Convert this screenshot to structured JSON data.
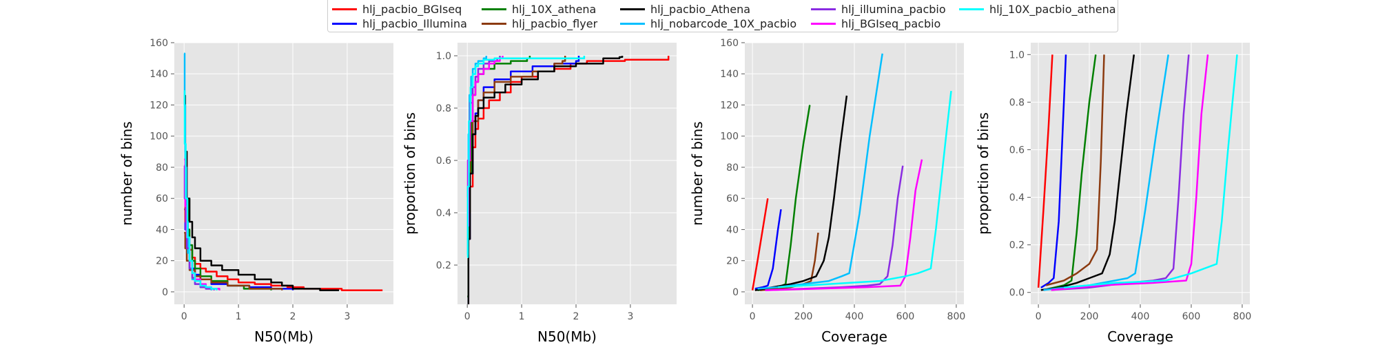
{
  "legend": {
    "entries": [
      {
        "name": "hlj_pacbio_BGIseq",
        "color": "#ff0000"
      },
      {
        "name": "hlj_pacbio_Illumina",
        "color": "#0000ff"
      },
      {
        "name": "hlj_10X_athena",
        "color": "#007f00"
      },
      {
        "name": "hlj_pacbio_flyer",
        "color": "#8b3a0f"
      },
      {
        "name": "hlj_pacbio_Athena",
        "color": "#000000"
      },
      {
        "name": "hlj_nobarcode_10X_pacbio",
        "color": "#00bfff"
      },
      {
        "name": "hlj_illumina_pacbio",
        "color": "#8a2be2"
      },
      {
        "name": "hlj_BGIseq_pacbio",
        "color": "#ff00ff"
      },
      {
        "name": "hlj_10X_pacbio_athena",
        "color": "#00ffff"
      }
    ]
  },
  "chart_data": [
    {
      "type": "line",
      "xlabel": "N50(Mb)",
      "ylabel": "number  of bins",
      "xlim": [
        -0.18,
        3.85
      ],
      "ylim": [
        -8,
        160
      ],
      "xticks": [
        0,
        1,
        2,
        3
      ],
      "yticks": [
        0,
        20,
        40,
        60,
        80,
        100,
        120,
        140,
        160
      ],
      "grid": true,
      "series": [
        {
          "name": "hlj_pacbio_BGIseq",
          "x": [
            0.0,
            0.02,
            0.05,
            0.1,
            0.15,
            0.2,
            0.3,
            0.4,
            0.6,
            0.8,
            1.0,
            1.3,
            1.6,
            1.9,
            2.2,
            2.9,
            3.65
          ],
          "y": [
            60,
            45,
            35,
            27,
            22,
            18,
            15,
            13,
            10,
            8,
            6,
            5,
            4,
            3,
            2,
            1,
            1
          ]
        },
        {
          "name": "hlj_pacbio_Illumina",
          "x": [
            0.0,
            0.02,
            0.05,
            0.1,
            0.15,
            0.2,
            0.3,
            0.5,
            0.8,
            1.2,
            1.6,
            2.0
          ],
          "y": [
            53,
            40,
            30,
            20,
            15,
            11,
            8,
            5,
            4,
            3,
            2,
            1
          ]
        },
        {
          "name": "hlj_10X_athena",
          "x": [
            0.0,
            0.02,
            0.04,
            0.07,
            0.1,
            0.15,
            0.2,
            0.3,
            0.5,
            0.8,
            1.1,
            1.6
          ],
          "y": [
            120,
            90,
            60,
            40,
            30,
            20,
            15,
            10,
            7,
            4,
            2,
            1
          ]
        },
        {
          "name": "hlj_pacbio_flyer",
          "x": [
            0.0,
            0.02,
            0.05,
            0.1,
            0.2,
            0.3,
            0.5,
            0.8,
            1.2,
            1.8
          ],
          "y": [
            38,
            28,
            20,
            14,
            10,
            8,
            6,
            4,
            2,
            1
          ]
        },
        {
          "name": "hlj_pacbio_Athena",
          "x": [
            0.0,
            0.02,
            0.05,
            0.1,
            0.15,
            0.2,
            0.3,
            0.5,
            0.7,
            1.0,
            1.3,
            1.6,
            1.8,
            2.0,
            2.5,
            2.85
          ],
          "y": [
            126,
            90,
            60,
            45,
            35,
            28,
            20,
            17,
            14,
            11,
            8,
            6,
            4,
            2,
            1,
            1
          ]
        },
        {
          "name": "hlj_nobarcode_10X_pacbio",
          "x": [
            0.0,
            0.01,
            0.02,
            0.04,
            0.07,
            0.1,
            0.15,
            0.2,
            0.3,
            0.4,
            0.5
          ],
          "y": [
            153,
            120,
            80,
            45,
            25,
            15,
            8,
            5,
            3,
            2,
            1
          ]
        },
        {
          "name": "hlj_illumina_pacbio",
          "x": [
            0.0,
            0.01,
            0.03,
            0.05,
            0.1,
            0.15,
            0.2,
            0.3,
            0.4,
            0.55
          ],
          "y": [
            81,
            60,
            40,
            28,
            15,
            9,
            5,
            3,
            2,
            1
          ]
        },
        {
          "name": "hlj_BGIseq_pacbio",
          "x": [
            0.0,
            0.02,
            0.05,
            0.1,
            0.15,
            0.2,
            0.3,
            0.4,
            0.5,
            0.65
          ],
          "y": [
            85,
            55,
            35,
            20,
            12,
            8,
            5,
            3,
            2,
            1
          ]
        },
        {
          "name": "hlj_10X_pacbio_athena",
          "x": [
            0.0,
            0.01,
            0.03,
            0.06,
            0.1,
            0.15,
            0.2,
            0.3,
            0.4,
            0.5,
            0.6
          ],
          "y": [
            129,
            95,
            60,
            35,
            20,
            12,
            7,
            4,
            3,
            2,
            1
          ]
        }
      ]
    },
    {
      "type": "line",
      "xlabel": "N50(Mb)",
      "ylabel": "proportion of bins",
      "xlim": [
        -0.18,
        3.85
      ],
      "ylim": [
        0.05,
        1.05
      ],
      "xticks": [
        0,
        1,
        2,
        3
      ],
      "yticks": [
        0.2,
        0.4,
        0.6,
        0.8,
        1.0
      ],
      "grid": true,
      "series": [
        {
          "name": "hlj_pacbio_BGIseq",
          "x": [
            0.0,
            0.02,
            0.05,
            0.1,
            0.15,
            0.2,
            0.3,
            0.4,
            0.6,
            0.8,
            1.0,
            1.3,
            1.6,
            1.9,
            2.2,
            2.9,
            3.65,
            3.7
          ],
          "y": [
            0.02,
            0.3,
            0.5,
            0.65,
            0.72,
            0.76,
            0.8,
            0.83,
            0.86,
            0.9,
            0.92,
            0.94,
            0.95,
            0.97,
            0.98,
            0.985,
            0.985,
            1.0
          ]
        },
        {
          "name": "hlj_pacbio_Illumina",
          "x": [
            0.0,
            0.02,
            0.05,
            0.1,
            0.15,
            0.2,
            0.3,
            0.5,
            0.8,
            1.2,
            1.6,
            2.0,
            2.05
          ],
          "y": [
            0.02,
            0.3,
            0.55,
            0.7,
            0.78,
            0.83,
            0.88,
            0.91,
            0.94,
            0.96,
            0.97,
            0.98,
            1.0
          ]
        },
        {
          "name": "hlj_10X_athena",
          "x": [
            0.0,
            0.02,
            0.04,
            0.07,
            0.1,
            0.15,
            0.2,
            0.3,
            0.5,
            0.8,
            1.1,
            1.15
          ],
          "y": [
            0.08,
            0.3,
            0.55,
            0.75,
            0.85,
            0.9,
            0.93,
            0.95,
            0.97,
            0.98,
            0.99,
            1.0
          ]
        },
        {
          "name": "hlj_pacbio_flyer",
          "x": [
            0.0,
            0.02,
            0.05,
            0.1,
            0.2,
            0.3,
            0.5,
            0.8,
            1.2,
            1.6,
            1.75,
            1.8
          ],
          "y": [
            0.27,
            0.4,
            0.6,
            0.75,
            0.83,
            0.86,
            0.9,
            0.92,
            0.94,
            0.97,
            0.98,
            1.0
          ]
        },
        {
          "name": "hlj_pacbio_Athena",
          "x": [
            0.0,
            0.02,
            0.05,
            0.1,
            0.15,
            0.2,
            0.3,
            0.5,
            0.7,
            1.0,
            1.3,
            1.6,
            2.0,
            2.5,
            2.8,
            2.85
          ],
          "y": [
            0.03,
            0.3,
            0.55,
            0.7,
            0.77,
            0.8,
            0.84,
            0.86,
            0.89,
            0.91,
            0.94,
            0.96,
            0.97,
            0.99,
            0.995,
            1.0
          ]
        },
        {
          "name": "hlj_nobarcode_10X_pacbio",
          "x": [
            0.0,
            0.01,
            0.02,
            0.04,
            0.07,
            0.1,
            0.15,
            0.2,
            0.3,
            0.35
          ],
          "y": [
            0.24,
            0.5,
            0.7,
            0.85,
            0.92,
            0.95,
            0.97,
            0.98,
            0.99,
            1.0
          ]
        },
        {
          "name": "hlj_illumina_pacbio",
          "x": [
            0.0,
            0.01,
            0.03,
            0.05,
            0.1,
            0.15,
            0.2,
            0.3,
            0.4,
            0.55,
            0.6
          ],
          "y": [
            0.46,
            0.6,
            0.75,
            0.82,
            0.88,
            0.92,
            0.95,
            0.97,
            0.98,
            0.99,
            1.0
          ]
        },
        {
          "name": "hlj_BGIseq_pacbio",
          "x": [
            0.0,
            0.02,
            0.05,
            0.1,
            0.15,
            0.2,
            0.3,
            0.4,
            0.5,
            0.6,
            0.65
          ],
          "y": [
            0.35,
            0.6,
            0.75,
            0.85,
            0.9,
            0.93,
            0.95,
            0.97,
            0.98,
            0.99,
            1.0
          ]
        },
        {
          "name": "hlj_10X_pacbio_athena",
          "x": [
            0.0,
            0.01,
            0.03,
            0.06,
            0.1,
            0.15,
            0.2,
            0.3,
            0.5,
            1.0,
            1.7,
            2.1,
            2.15
          ],
          "y": [
            0.23,
            0.5,
            0.75,
            0.88,
            0.93,
            0.96,
            0.97,
            0.985,
            0.99,
            0.99,
            0.99,
            0.99,
            1.0
          ]
        }
      ]
    },
    {
      "type": "line",
      "xlabel": "Coverage",
      "ylabel": "number of bins",
      "xlim": [
        -30,
        830
      ],
      "ylim": [
        -8,
        160
      ],
      "xticks": [
        0,
        200,
        400,
        600,
        800
      ],
      "yticks": [
        0,
        20,
        40,
        60,
        80,
        100,
        120,
        140,
        160
      ],
      "grid": true,
      "series": [
        {
          "name": "hlj_pacbio_BGIseq",
          "x": [
            0,
            20,
            40,
            60
          ],
          "y": [
            1,
            20,
            40,
            60
          ]
        },
        {
          "name": "hlj_pacbio_Illumina",
          "x": [
            10,
            40,
            60,
            80,
            100,
            112
          ],
          "y": [
            2,
            3,
            4,
            15,
            40,
            53
          ]
        },
        {
          "name": "hlj_10X_athena",
          "x": [
            20,
            60,
            100,
            130,
            150,
            170,
            200,
            225
          ],
          "y": [
            1,
            2,
            3,
            5,
            30,
            60,
            95,
            120
          ]
        },
        {
          "name": "hlj_pacbio_flyer",
          "x": [
            30,
            100,
            150,
            200,
            230,
            245,
            258
          ],
          "y": [
            1,
            2,
            3,
            5,
            7,
            20,
            38
          ]
        },
        {
          "name": "hlj_pacbio_Athena",
          "x": [
            10,
            80,
            150,
            200,
            250,
            280,
            300,
            320,
            345,
            370
          ],
          "y": [
            1,
            3,
            5,
            7,
            10,
            20,
            35,
            60,
            95,
            126
          ]
        },
        {
          "name": "hlj_nobarcode_10X_pacbio",
          "x": [
            20,
            100,
            200,
            300,
            350,
            380,
            420,
            460,
            510
          ],
          "y": [
            2,
            3,
            5,
            7,
            10,
            12,
            50,
            100,
            153
          ]
        },
        {
          "name": "hlj_illumina_pacbio",
          "x": [
            50,
            200,
            350,
            450,
            500,
            530,
            550,
            570,
            590
          ],
          "y": [
            1,
            2,
            3,
            4,
            5,
            10,
            30,
            60,
            81
          ]
        },
        {
          "name": "hlj_BGIseq_pacbio",
          "x": [
            50,
            250,
            450,
            580,
            600,
            620,
            640,
            665
          ],
          "y": [
            1,
            2,
            3,
            4,
            10,
            35,
            65,
            85
          ]
        },
        {
          "name": "hlj_10X_pacbio_athena",
          "x": [
            100,
            300,
            500,
            600,
            650,
            700,
            720,
            740,
            760,
            780
          ],
          "y": [
            3,
            5,
            7,
            10,
            12,
            15,
            40,
            70,
            100,
            129
          ]
        }
      ]
    },
    {
      "type": "line",
      "xlabel": "Coverage",
      "ylabel": "proportion of bins",
      "xlim": [
        -30,
        830
      ],
      "ylim": [
        -0.05,
        1.05
      ],
      "xticks": [
        0,
        200,
        400,
        600,
        800
      ],
      "yticks": [
        0.0,
        0.2,
        0.4,
        0.6,
        0.8,
        1.0
      ],
      "grid": true,
      "series": [
        {
          "name": "hlj_pacbio_BGIseq",
          "x": [
            0,
            20,
            40,
            55
          ],
          "y": [
            0.02,
            0.35,
            0.7,
            1.0
          ]
        },
        {
          "name": "hlj_pacbio_Illumina",
          "x": [
            10,
            40,
            60,
            80,
            100,
            108
          ],
          "y": [
            0.02,
            0.04,
            0.06,
            0.3,
            0.8,
            1.0
          ]
        },
        {
          "name": "hlj_10X_athena",
          "x": [
            20,
            60,
            100,
            130,
            150,
            170,
            200,
            225
          ],
          "y": [
            0.01,
            0.02,
            0.03,
            0.05,
            0.25,
            0.5,
            0.8,
            1.0
          ]
        },
        {
          "name": "hlj_pacbio_flyer",
          "x": [
            30,
            100,
            150,
            200,
            230,
            245,
            258
          ],
          "y": [
            0.03,
            0.05,
            0.08,
            0.12,
            0.18,
            0.55,
            1.0
          ]
        },
        {
          "name": "hlj_pacbio_Athena",
          "x": [
            10,
            80,
            150,
            200,
            250,
            280,
            300,
            320,
            345,
            375
          ],
          "y": [
            0.01,
            0.02,
            0.04,
            0.06,
            0.08,
            0.16,
            0.3,
            0.5,
            0.75,
            1.0
          ]
        },
        {
          "name": "hlj_nobarcode_10X_pacbio",
          "x": [
            20,
            100,
            200,
            300,
            350,
            380,
            420,
            460,
            510
          ],
          "y": [
            0.01,
            0.02,
            0.03,
            0.05,
            0.06,
            0.08,
            0.35,
            0.65,
            1.0
          ]
        },
        {
          "name": "hlj_illumina_pacbio",
          "x": [
            50,
            200,
            350,
            450,
            500,
            530,
            550,
            570,
            590
          ],
          "y": [
            0.01,
            0.02,
            0.04,
            0.05,
            0.06,
            0.1,
            0.4,
            0.75,
            1.0
          ]
        },
        {
          "name": "hlj_BGIseq_pacbio",
          "x": [
            50,
            250,
            450,
            580,
            600,
            620,
            640,
            665
          ],
          "y": [
            0.01,
            0.03,
            0.04,
            0.05,
            0.12,
            0.4,
            0.75,
            1.0
          ]
        },
        {
          "name": "hlj_10X_pacbio_athena",
          "x": [
            100,
            300,
            500,
            600,
            650,
            700,
            720,
            740,
            760,
            780
          ],
          "y": [
            0.02,
            0.04,
            0.05,
            0.08,
            0.1,
            0.12,
            0.3,
            0.55,
            0.78,
            1.0
          ]
        }
      ]
    }
  ]
}
